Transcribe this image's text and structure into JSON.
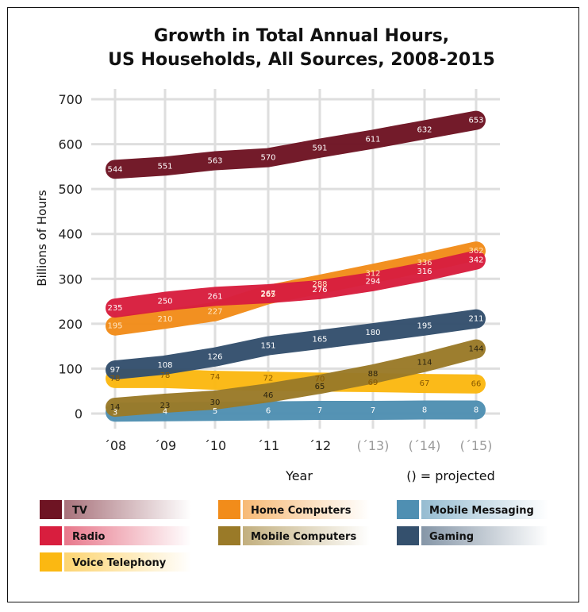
{
  "chart_data": {
    "type": "line",
    "title": [
      "Growth in Total Annual Hours,",
      "US Households, All Sources, 2008-2015"
    ],
    "xlabel": "Year",
    "ylabel": "Billions of Hours",
    "note": "() = projected",
    "categories": [
      "´08",
      "´09",
      "´10",
      "´11",
      "´12",
      "(´13)",
      "(´14)",
      "(´15)"
    ],
    "projected_from_index": 5,
    "ylim": [
      0,
      700
    ],
    "yticks": [
      0,
      100,
      200,
      300,
      400,
      500,
      600,
      700
    ],
    "grid": true,
    "series": [
      {
        "name": "TV",
        "color": "#6e1423",
        "label_color": "#ffffff",
        "values": [
          544,
          551,
          563,
          570,
          591,
          611,
          632,
          653
        ]
      },
      {
        "name": "Radio",
        "color": "#d81e3e",
        "label_color": "#ffffff",
        "values": [
          235,
          250,
          261,
          267,
          276,
          294,
          316,
          342
        ]
      },
      {
        "name": "Voice Telephony",
        "color": "#fbb812",
        "label_color": "#8a5a00",
        "values": [
          78,
          78,
          74,
          72,
          70,
          69,
          67,
          66
        ]
      },
      {
        "name": "Home Computers",
        "color": "#f28c1a",
        "label_color": "#ffe7c4",
        "values": [
          195,
          210,
          227,
          265,
          288,
          312,
          336,
          362
        ]
      },
      {
        "name": "Mobile Computers",
        "color": "#9a7a28",
        "label_color": "#2b2410",
        "values": [
          14,
          23,
          30,
          46,
          65,
          88,
          114,
          144
        ]
      },
      {
        "name": "Gaming",
        "color": "#34506d",
        "label_color": "#ffffff",
        "values": [
          97,
          108,
          126,
          151,
          165,
          180,
          195,
          211
        ]
      },
      {
        "name": "Mobile Messaging",
        "color": "#4f8fb2",
        "label_color": "#ffffff",
        "values": [
          3,
          4,
          5,
          6,
          7,
          7,
          8,
          8
        ]
      }
    ],
    "legend": {
      "placement": "bottom",
      "items": [
        {
          "name": "TV",
          "color": "#6e1423"
        },
        {
          "name": "Home Computers",
          "color": "#f28c1a"
        },
        {
          "name": "Mobile Messaging",
          "color": "#4f8fb2"
        },
        {
          "name": "Radio",
          "color": "#d81e3e"
        },
        {
          "name": "Mobile Computers",
          "color": "#9a7a28"
        },
        {
          "name": "Gaming",
          "color": "#34506d"
        },
        {
          "name": "Voice Telephony",
          "color": "#fbb812"
        }
      ]
    }
  }
}
